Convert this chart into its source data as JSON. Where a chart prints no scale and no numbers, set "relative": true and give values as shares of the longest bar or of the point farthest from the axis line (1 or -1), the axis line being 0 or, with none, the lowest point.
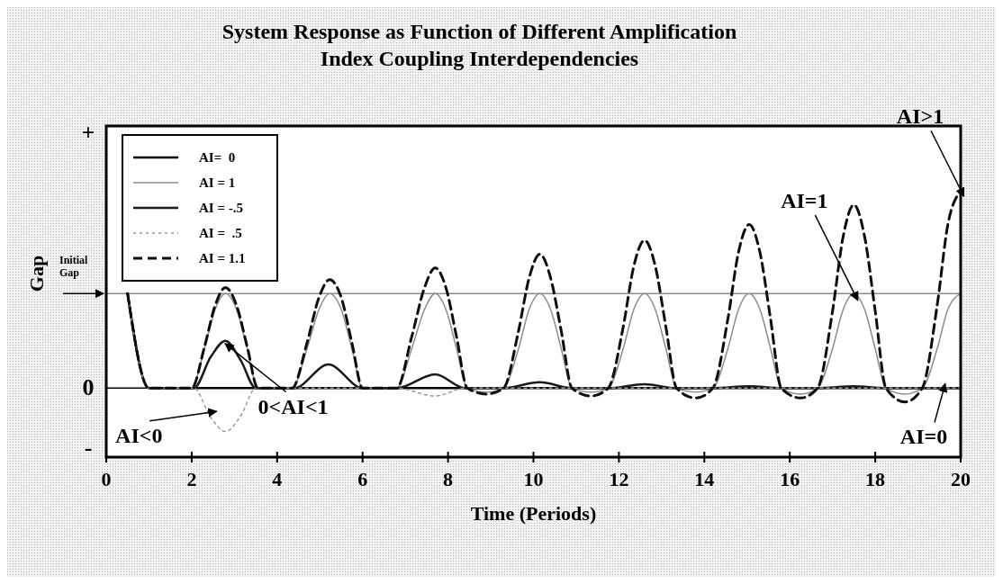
{
  "chart_data": {
    "type": "line",
    "title": "System Response as Function of Different Amplification Index Coupling Interdependencies",
    "xlabel": "Time (Periods)",
    "ylabel": "Gap",
    "relative": true,
    "xlim": [
      0,
      20
    ],
    "xticks": [
      0,
      2,
      4,
      6,
      8,
      10,
      12,
      14,
      16,
      18,
      20
    ],
    "legend": "top left",
    "grid": false,
    "ref_lines": [
      {
        "axis": "y",
        "value": 0.48,
        "label": "Initial Gap",
        "color": "#555555"
      }
    ],
    "annotations": [
      "+",
      "0",
      "-",
      {
        "text": "AI>1",
        "x": 20,
        "y": 1.0
      },
      {
        "text": "AI=1",
        "x": 17.5,
        "y": 0.48
      },
      {
        "text": "0<AI<1",
        "x": 2.9,
        "y": 0.2
      },
      {
        "text": "AI<0",
        "x": 2.45,
        "y": -0.13
      },
      {
        "text": "AI=0",
        "x": 19.6,
        "y": 0
      }
    ],
    "series": [
      {
        "name": "AI=  0",
        "color": "#000000",
        "line_style": "solid",
        "x": [
          0.5,
          1.0,
          20
        ],
        "values": [
          0.48,
          0,
          0
        ]
      },
      {
        "name": "AI = 1",
        "color": "#8c8c8c",
        "line_style": "solid",
        "x": [
          0.5,
          1.0,
          2.0,
          2.3,
          2.55,
          2.79,
          3.05,
          3.3,
          3.55,
          4.35,
          4.7,
          4.98,
          5.23,
          5.5,
          5.75,
          6.0,
          6.8,
          7.15,
          7.45,
          7.7,
          7.95,
          8.2,
          8.45,
          8.9,
          9.3,
          9.65,
          9.9,
          10.15,
          10.4,
          10.65,
          10.9,
          11.35,
          11.75,
          12.1,
          12.35,
          12.6,
          12.85,
          13.1,
          13.35,
          13.8,
          14.2,
          14.55,
          14.8,
          15.05,
          15.3,
          15.55,
          15.8,
          16.25,
          16.65,
          17.0,
          17.25,
          17.5,
          17.75,
          18.0,
          18.25,
          18.7,
          19.1,
          19.45,
          19.7,
          20.0
        ],
        "values": [
          0.48,
          0,
          0,
          0.2,
          0.4,
          0.48,
          0.4,
          0.2,
          0,
          0,
          0.2,
          0.4,
          0.48,
          0.4,
          0.2,
          0,
          0,
          0.2,
          0.4,
          0.48,
          0.4,
          0.2,
          0,
          -0.02,
          0,
          0.2,
          0.4,
          0.48,
          0.4,
          0.2,
          0,
          -0.02,
          0,
          0.2,
          0.4,
          0.48,
          0.4,
          0.2,
          0,
          -0.02,
          0,
          0.2,
          0.4,
          0.48,
          0.4,
          0.2,
          0,
          -0.03,
          0,
          0.2,
          0.4,
          0.48,
          0.4,
          0.2,
          0,
          -0.03,
          0,
          0.2,
          0.4,
          0.48
        ]
      },
      {
        "name": "AI = -.5",
        "color": "#1a1a1a",
        "line_style": "solid",
        "x": [
          0.5,
          1.0,
          2.05,
          2.45,
          2.79,
          3.15,
          3.5,
          4.4,
          5.2,
          6.0,
          6.8,
          7.7,
          8.4,
          9.3,
          10.15,
          10.9,
          11.75,
          12.6,
          13.35,
          14.2,
          15.05,
          15.8,
          16.65,
          17.5,
          18.25,
          20
        ],
        "values": [
          0.48,
          0,
          0,
          0.16,
          0.24,
          0.14,
          0,
          0,
          0.12,
          0,
          0,
          0.07,
          0,
          0,
          0.03,
          0,
          0,
          0.02,
          0,
          0,
          0.01,
          0,
          0,
          0.01,
          0,
          0
        ]
      },
      {
        "name": "AI =  .5",
        "color": "#9a9a9a",
        "line_style": "dotted",
        "x": [
          0.5,
          1.0,
          2.05,
          2.45,
          2.79,
          3.15,
          3.5,
          6.8,
          7.7,
          8.4,
          20
        ],
        "values": [
          0.48,
          0,
          0,
          -0.15,
          -0.22,
          -0.14,
          0,
          0,
          -0.04,
          0,
          0
        ]
      },
      {
        "name": "AI = 1.1",
        "color": "#0d0d0d",
        "line_style": "dashed",
        "x": [
          0.5,
          1.0,
          2.0,
          2.3,
          2.55,
          2.79,
          3.05,
          3.3,
          3.55,
          4.35,
          4.7,
          4.98,
          5.23,
          5.5,
          5.75,
          6.0,
          6.8,
          7.15,
          7.45,
          7.7,
          7.95,
          8.2,
          8.45,
          8.9,
          9.3,
          9.65,
          9.9,
          10.15,
          10.4,
          10.65,
          10.9,
          11.35,
          11.75,
          12.1,
          12.35,
          12.6,
          12.85,
          13.1,
          13.35,
          13.8,
          14.2,
          14.55,
          14.8,
          15.05,
          15.3,
          15.55,
          15.8,
          16.25,
          16.65,
          17.0,
          17.25,
          17.5,
          17.75,
          18.0,
          18.25,
          18.7,
          19.1,
          19.45,
          19.7,
          20.0
        ],
        "values": [
          0.48,
          0,
          0,
          0.21,
          0.42,
          0.51,
          0.42,
          0.21,
          0,
          0,
          0.23,
          0.46,
          0.55,
          0.46,
          0.23,
          0,
          0,
          0.26,
          0.51,
          0.61,
          0.51,
          0.26,
          0,
          -0.03,
          0,
          0.29,
          0.56,
          0.68,
          0.56,
          0.29,
          0,
          -0.04,
          0,
          0.31,
          0.62,
          0.75,
          0.62,
          0.31,
          0,
          -0.05,
          0,
          0.35,
          0.69,
          0.83,
          0.69,
          0.35,
          0,
          -0.05,
          0,
          0.39,
          0.77,
          0.93,
          0.77,
          0.39,
          0,
          -0.07,
          0,
          0.42,
          0.83,
          1.0
        ]
      }
    ]
  }
}
